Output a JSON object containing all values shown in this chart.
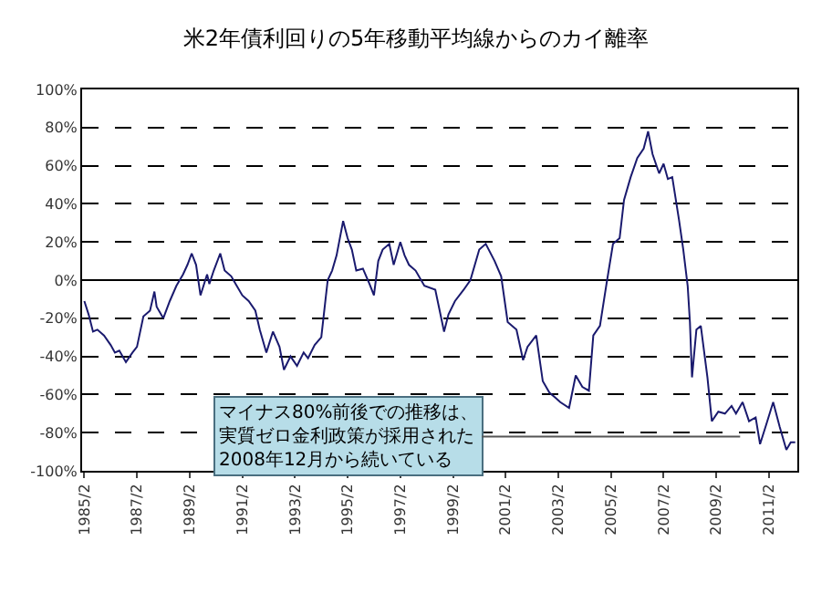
{
  "chart_data": {
    "type": "line",
    "title": "米2年債利回りの5年移動平均線からのカイ離率",
    "x": [
      "1985-02",
      "1985-04",
      "1985-06",
      "1985-08",
      "1985-11",
      "1986-02",
      "1986-04",
      "1986-06",
      "1986-09",
      "1986-12",
      "1987-02",
      "1987-05",
      "1987-08",
      "1987-10",
      "1987-11",
      "1988-02",
      "1988-05",
      "1988-08",
      "1988-11",
      "1989-01",
      "1989-03",
      "1989-05",
      "1989-07",
      "1989-10",
      "1989-11",
      "1990-01",
      "1990-04",
      "1990-06",
      "1990-09",
      "1990-11",
      "1991-02",
      "1991-05",
      "1991-08",
      "1991-10",
      "1992-01",
      "1992-04",
      "1992-07",
      "1992-09",
      "1992-12",
      "1993-03",
      "1993-06",
      "1993-08",
      "1993-11",
      "1994-02",
      "1994-04",
      "1994-05",
      "1994-07",
      "1994-09",
      "1994-12",
      "1995-02",
      "1995-04",
      "1995-06",
      "1995-09",
      "1995-12",
      "1996-02",
      "1996-04",
      "1996-06",
      "1996-09",
      "1996-11",
      "1997-02",
      "1997-04",
      "1997-06",
      "1997-09",
      "1998-01",
      "1998-06",
      "1998-10",
      "1998-12",
      "1999-03",
      "1999-07",
      "1999-10",
      "2000-02",
      "2000-05",
      "2000-09",
      "2000-12",
      "2001-03",
      "2001-07",
      "2001-10",
      "2001-12",
      "2002-04",
      "2002-07",
      "2002-10",
      "2003-01",
      "2003-03",
      "2003-07",
      "2003-10",
      "2004-01",
      "2004-04",
      "2004-06",
      "2004-09",
      "2004-12",
      "2005-03",
      "2005-06",
      "2005-08",
      "2005-11",
      "2006-02",
      "2006-05",
      "2006-07",
      "2006-09",
      "2006-12",
      "2007-02",
      "2007-04",
      "2007-06",
      "2007-09",
      "2007-11",
      "2008-01",
      "2008-02",
      "2008-03",
      "2008-05",
      "2008-07",
      "2008-10",
      "2008-12",
      "2009-03",
      "2009-06",
      "2009-09",
      "2009-11",
      "2010-02",
      "2010-05",
      "2010-08",
      "2010-10",
      "2011-01",
      "2011-04",
      "2011-07",
      "2011-10",
      "2011-12",
      "2012-02"
    ],
    "series": [
      {
        "color": "#1a1a6e",
        "values": [
          -11,
          -18,
          -27,
          -26,
          -29,
          -34,
          -38,
          -37,
          -43,
          -38,
          -35,
          -19,
          -16,
          -6,
          -14,
          -20,
          -11,
          -3,
          3,
          8,
          14,
          8,
          -8,
          3,
          -2,
          5,
          14,
          5,
          2,
          -2,
          -8,
          -11,
          -16,
          -26,
          -38,
          -27,
          -35,
          -47,
          -40,
          -45,
          -38,
          -41,
          -34,
          -30,
          -10,
          0,
          5,
          13,
          31,
          22,
          16,
          5,
          6,
          -2,
          -8,
          10,
          16,
          19,
          8,
          20,
          13,
          8,
          5,
          -3,
          -5,
          -27,
          -18,
          -11,
          -5,
          0,
          16,
          19,
          10,
          2,
          -22,
          -26,
          -42,
          -35,
          -29,
          -53,
          -59,
          -62,
          -64,
          -67,
          -50,
          -56,
          -58,
          -29,
          -24,
          -2,
          19,
          22,
          42,
          54,
          64,
          69,
          78,
          66,
          56,
          61,
          53,
          54,
          32,
          16,
          -3,
          -22,
          -51,
          -26,
          -24,
          -51,
          -74,
          -69,
          -70,
          -66,
          -70,
          -64,
          -74,
          -72,
          -86,
          -75,
          -64,
          -77,
          -89,
          -85,
          -85
        ]
      }
    ],
    "xlim": [
      "1985-01",
      "2012-03"
    ],
    "xticks": [
      {
        "value": "1985-02",
        "label": "1985/2"
      },
      {
        "value": "1987-02",
        "label": "1987/2"
      },
      {
        "value": "1989-02",
        "label": "1989/2"
      },
      {
        "value": "1991-02",
        "label": "1991/2"
      },
      {
        "value": "1993-02",
        "label": "1993/2"
      },
      {
        "value": "1995-02",
        "label": "1995/2"
      },
      {
        "value": "1997-02",
        "label": "1997/2"
      },
      {
        "value": "1999-02",
        "label": "1999/2"
      },
      {
        "value": "2001-02",
        "label": "2001/2"
      },
      {
        "value": "2003-02",
        "label": "2003/2"
      },
      {
        "value": "2005-02",
        "label": "2005/2"
      },
      {
        "value": "2007-02",
        "label": "2007/2"
      },
      {
        "value": "2009-02",
        "label": "2009/2"
      },
      {
        "value": "2011-02",
        "label": "2011/2"
      }
    ],
    "ylim": [
      -100,
      100
    ],
    "yticks": [
      {
        "value": -100,
        "label": "-100%"
      },
      {
        "value": -80,
        "label": "-80%"
      },
      {
        "value": -60,
        "label": "-60%"
      },
      {
        "value": -40,
        "label": "-40%"
      },
      {
        "value": -20,
        "label": "-20%"
      },
      {
        "value": 0,
        "label": "0%"
      },
      {
        "value": 20,
        "label": "20%"
      },
      {
        "value": 40,
        "label": "40%"
      },
      {
        "value": 60,
        "label": "60%"
      },
      {
        "value": 80,
        "label": "80%"
      },
      {
        "value": 100,
        "label": "100%"
      }
    ],
    "grid": "y",
    "marker": "none",
    "line_style": "solid",
    "annotations": [
      "マイナス80%前後での推移は、実質ゼロ金利政策が採用された2008年12月から続いている"
    ]
  }
}
